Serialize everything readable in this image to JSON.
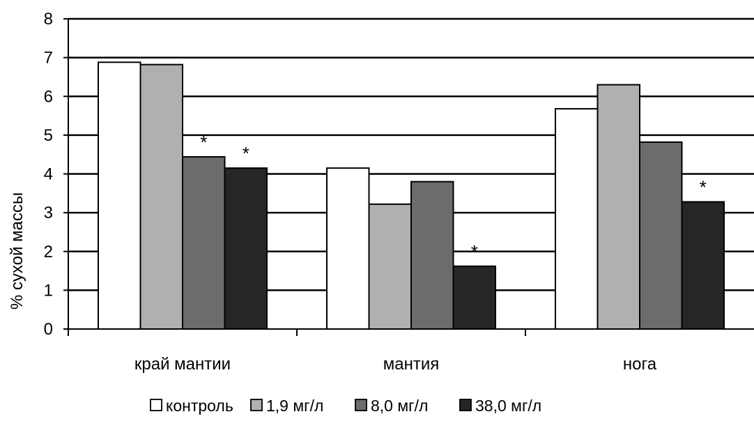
{
  "chart_data": {
    "type": "bar",
    "title": "",
    "xlabel": "",
    "ylabel": "% сухой массы",
    "ylim": [
      0,
      8
    ],
    "yticks": [
      "0",
      "1",
      "2",
      "3",
      "4",
      "5",
      "6",
      "7",
      "8"
    ],
    "grid": true,
    "legend_position": "bottom",
    "categories": [
      "край мантии",
      "мантия",
      "нога"
    ],
    "series": [
      {
        "name": "контроль",
        "color": "#ffffff",
        "values": [
          6.88,
          4.15,
          5.68
        ]
      },
      {
        "name": "1,9 мг/л",
        "color": "#b0b0b0",
        "values": [
          6.82,
          3.22,
          6.3
        ]
      },
      {
        "name": "8,0 мг/л",
        "color": "#6c6c6c",
        "values": [
          4.44,
          3.8,
          4.82
        ]
      },
      {
        "name": "38,0 мг/л",
        "color": "#262626",
        "values": [
          4.15,
          1.62,
          3.28
        ]
      }
    ],
    "annotations": [
      {
        "text": "*",
        "category": 0,
        "series": 2
      },
      {
        "text": "*",
        "category": 0,
        "series": 3
      },
      {
        "text": "*",
        "category": 1,
        "series": 3
      },
      {
        "text": "*",
        "category": 2,
        "series": 3
      }
    ]
  }
}
